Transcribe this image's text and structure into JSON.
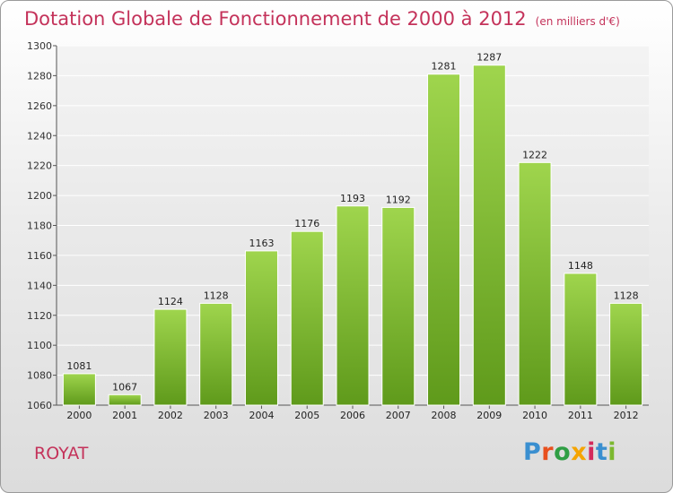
{
  "title": "Dotation Globale de Fonctionnement de 2000 à 2012",
  "unit": "(en milliers d'€)",
  "commune": "ROYAT",
  "logo": {
    "text": "Proxiti",
    "letters": [
      {
        "ch": "P",
        "color": "#3a8fd0"
      },
      {
        "ch": "r",
        "color": "#e8501e"
      },
      {
        "ch": "o",
        "color": "#2f9e44"
      },
      {
        "ch": "x",
        "color": "#f5a400"
      },
      {
        "ch": "i",
        "color": "#d42a5b"
      },
      {
        "ch": "t",
        "color": "#3a8fd0"
      },
      {
        "ch": "i",
        "color": "#7cb82f"
      }
    ]
  },
  "colors": {
    "title": "#c4325a",
    "bar_top": "#9fd54d",
    "bar_bottom": "#5f9a1b",
    "grid": "#ffffff"
  },
  "chart_data": {
    "type": "bar",
    "categories": [
      "2000",
      "2001",
      "2002",
      "2003",
      "2004",
      "2005",
      "2006",
      "2007",
      "2008",
      "2009",
      "2010",
      "2011",
      "2012"
    ],
    "values": [
      1081,
      1067,
      1124,
      1128,
      1163,
      1176,
      1193,
      1192,
      1281,
      1287,
      1222,
      1148,
      1128
    ],
    "ylim": [
      1060,
      1300
    ],
    "yticks": [
      1060,
      1080,
      1100,
      1120,
      1140,
      1160,
      1180,
      1200,
      1220,
      1240,
      1260,
      1280,
      1300
    ],
    "grid": true,
    "title": "Dotation Globale de Fonctionnement de 2000 à 2012",
    "xlabel": "",
    "ylabel": ""
  }
}
